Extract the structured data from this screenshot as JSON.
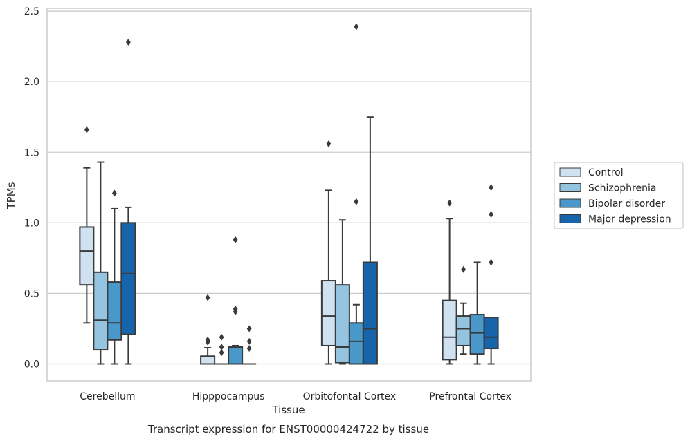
{
  "chart_data": {
    "type": "box",
    "title": "",
    "xlabel": "Tissue",
    "ylabel": "TPMs",
    "caption": "Transcript expression for ENST00000424722 by tissue",
    "ylim": [
      -0.12,
      2.52
    ],
    "yticks": [
      0.0,
      0.5,
      1.0,
      1.5,
      2.0,
      2.5
    ],
    "ytick_labels": [
      "0.0",
      "0.5",
      "1.0",
      "1.5",
      "2.0",
      "2.5"
    ],
    "grid": "horizontal",
    "legend_position": "right",
    "categories": [
      "Cerebellum",
      "Hipppocampus",
      "Orbitofontal Cortex",
      "Prefrontal Cortex"
    ],
    "series": [
      {
        "name": "Control",
        "color": "#d0e1f2",
        "boxes": [
          {
            "whislo": 0.29,
            "q1": 0.56,
            "med": 0.8,
            "q3": 0.97,
            "whishi": 1.39,
            "fliers": [
              1.66
            ]
          },
          {
            "whislo": 0.0,
            "q1": 0.0,
            "med": 0.0,
            "q3": 0.055,
            "whishi": 0.115,
            "fliers": [
              0.47,
              0.17,
              0.155
            ]
          },
          {
            "whislo": 0.0,
            "q1": 0.13,
            "med": 0.34,
            "q3": 0.59,
            "whishi": 1.23,
            "fliers": [
              1.56
            ]
          },
          {
            "whislo": 0.0,
            "q1": 0.03,
            "med": 0.19,
            "q3": 0.45,
            "whishi": 1.03,
            "fliers": [
              1.14
            ]
          }
        ]
      },
      {
        "name": "Schizophrenia",
        "color": "#94c4df",
        "boxes": [
          {
            "whislo": 0.0,
            "q1": 0.1,
            "med": 0.31,
            "q3": 0.65,
            "whishi": 1.43,
            "fliers": []
          },
          {
            "whislo": 0.0,
            "q1": 0.0,
            "med": 0.0,
            "q3": 0.0,
            "whishi": 0.0,
            "fliers": [
              0.19,
              0.12,
              0.08
            ]
          },
          {
            "whislo": 0.0,
            "q1": 0.01,
            "med": 0.12,
            "q3": 0.56,
            "whishi": 1.02,
            "fliers": []
          },
          {
            "whislo": 0.07,
            "q1": 0.13,
            "med": 0.25,
            "q3": 0.34,
            "whishi": 0.43,
            "fliers": [
              0.67
            ]
          }
        ]
      },
      {
        "name": "Bipolar disorder",
        "color": "#4a98c9",
        "boxes": [
          {
            "whislo": 0.0,
            "q1": 0.17,
            "med": 0.29,
            "q3": 0.58,
            "whishi": 1.1,
            "fliers": [
              1.21
            ]
          },
          {
            "whislo": 0.0,
            "q1": 0.0,
            "med": 0.0,
            "q3": 0.12,
            "whishi": 0.13,
            "fliers": [
              0.88,
              0.39,
              0.37
            ]
          },
          {
            "whislo": 0.0,
            "q1": 0.0,
            "med": 0.16,
            "q3": 0.29,
            "whishi": 0.42,
            "fliers": [
              1.15,
              2.39
            ]
          },
          {
            "whislo": 0.0,
            "q1": 0.07,
            "med": 0.22,
            "q3": 0.35,
            "whishi": 0.72,
            "fliers": []
          }
        ]
      },
      {
        "name": "Major depression",
        "color": "#1764ab",
        "boxes": [
          {
            "whislo": 0.0,
            "q1": 0.21,
            "med": 0.64,
            "q3": 1.0,
            "whishi": 1.11,
            "fliers": [
              2.28
            ]
          },
          {
            "whislo": 0.0,
            "q1": 0.0,
            "med": 0.0,
            "q3": 0.0,
            "whishi": 0.0,
            "fliers": [
              0.25,
              0.16,
              0.11
            ]
          },
          {
            "whislo": 0.0,
            "q1": 0.0,
            "med": 0.25,
            "q3": 0.72,
            "whishi": 1.75,
            "fliers": []
          },
          {
            "whislo": 0.0,
            "q1": 0.11,
            "med": 0.19,
            "q3": 0.33,
            "whishi": 0.33,
            "fliers": [
              0.72,
              1.06,
              1.25
            ]
          }
        ]
      }
    ]
  },
  "colors": {
    "grid": "#cccccc",
    "frame": "#cccccc",
    "box_edge": "#3a3a3a",
    "text": "#262626"
  }
}
